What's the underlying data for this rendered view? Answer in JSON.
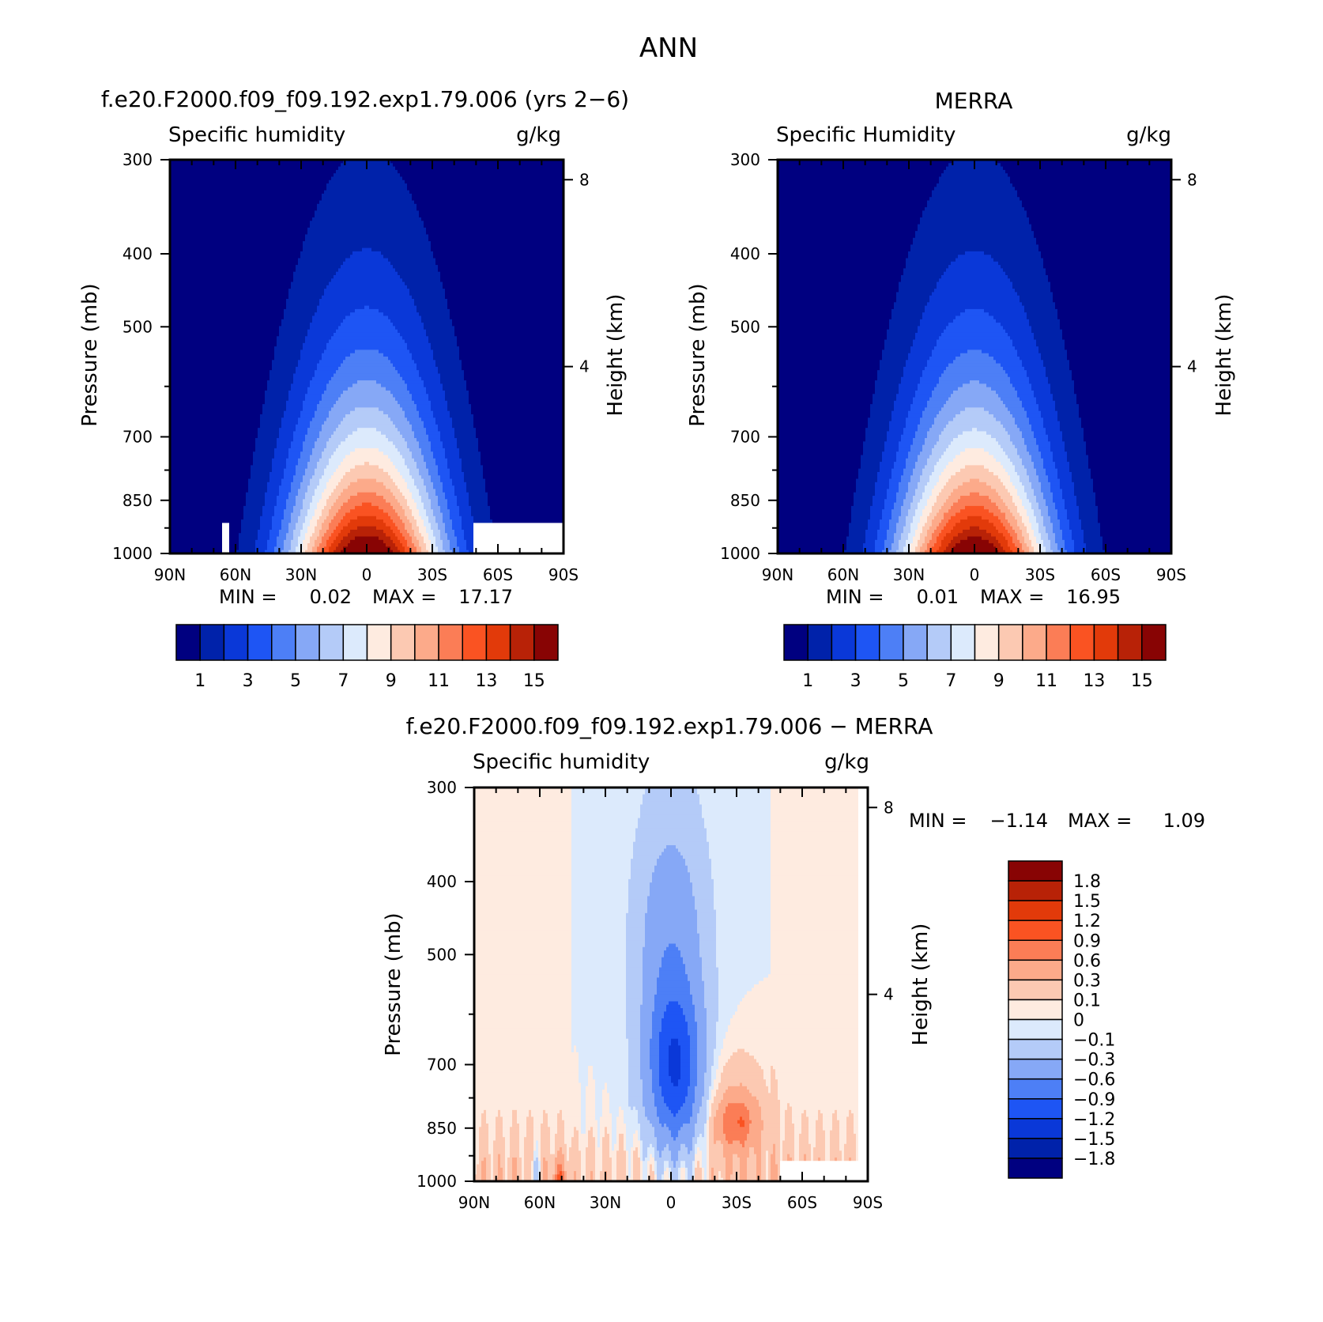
{
  "figure": {
    "title": "ANN",
    "colors": {
      "abs_palette": [
        "#000080",
        "#0022aa",
        "#0a38d8",
        "#1e55f4",
        "#4d7ff6",
        "#86a8f6",
        "#b4cbf8",
        "#dceafc",
        "#feebe0",
        "#fcc9b2",
        "#fcaa8a",
        "#fb7d56",
        "#fa5322",
        "#e23a0a",
        "#b82207",
        "#880404"
      ],
      "diff_palette": [
        "#000080",
        "#0022aa",
        "#0a38d8",
        "#1e55f4",
        "#4d7ff6",
        "#86a8f6",
        "#b4cbf8",
        "#dceafc",
        "#feebe0",
        "#fcc9b2",
        "#fcaa8a",
        "#fb7d56",
        "#fa5322",
        "#e23a0a",
        "#b82207",
        "#880404"
      ]
    }
  },
  "chart_data": [
    {
      "type": "heatmap",
      "title": "f.e20.F2000.f09_f09.192.exp1.79.006 (yrs 2−6)",
      "subtitle": "Specific humidity",
      "units": "g/kg",
      "ylabel": "Pressure (mb)",
      "ylabel_right": "Height (km)",
      "x_ticks": [
        "90N",
        "60N",
        "30N",
        "0",
        "30S",
        "60S",
        "90S"
      ],
      "x_values": [
        90,
        60,
        30,
        0,
        -30,
        -60,
        -90
      ],
      "y_ticks": [
        300,
        400,
        500,
        700,
        850,
        1000
      ],
      "y_right_ticks": [
        8,
        4
      ],
      "ylim": [
        1000,
        300
      ],
      "log_pressure": true,
      "min_label": "MIN =",
      "min_value": "0.02",
      "max_label": "MAX =",
      "max_value": "17.17",
      "min": 0.02,
      "max": 17.17,
      "peak": 17,
      "levels": [
        1,
        2,
        3,
        4,
        5,
        6,
        7,
        8,
        9,
        10,
        11,
        12,
        13,
        14,
        15
      ],
      "colorbar_labels": [
        "1",
        "3",
        "5",
        "7",
        "9",
        "11",
        "13",
        "15"
      ],
      "colorbar_orientation": "horizontal"
    },
    {
      "type": "heatmap",
      "title": "MERRA",
      "subtitle": "Specific Humidity",
      "units": "g/kg",
      "ylabel": "Pressure (mb)",
      "ylabel_right": "Height (km)",
      "x_ticks": [
        "90N",
        "60N",
        "30N",
        "0",
        "30S",
        "60S",
        "90S"
      ],
      "x_values": [
        90,
        60,
        30,
        0,
        -30,
        -60,
        -90
      ],
      "y_ticks": [
        300,
        400,
        500,
        700,
        850,
        1000
      ],
      "y_right_ticks": [
        8,
        4
      ],
      "ylim": [
        1000,
        300
      ],
      "log_pressure": true,
      "min_label": "MIN =",
      "min_value": "0.01",
      "max_label": "MAX =",
      "max_value": "16.95",
      "min": 0.01,
      "max": 16.95,
      "peak": 16.8,
      "levels": [
        1,
        2,
        3,
        4,
        5,
        6,
        7,
        8,
        9,
        10,
        11,
        12,
        13,
        14,
        15
      ],
      "colorbar_labels": [
        "1",
        "3",
        "5",
        "7",
        "9",
        "11",
        "13",
        "15"
      ],
      "colorbar_orientation": "horizontal"
    },
    {
      "type": "heatmap",
      "title": "f.e20.F2000.f09_f09.192.exp1.79.006 − MERRA",
      "subtitle": "Specific humidity",
      "units": "g/kg",
      "ylabel": "Pressure (mb)",
      "ylabel_right": "Height (km)",
      "x_ticks": [
        "90N",
        "60N",
        "30N",
        "0",
        "30S",
        "60S",
        "90S"
      ],
      "x_values": [
        90,
        60,
        30,
        0,
        -30,
        -60,
        -90
      ],
      "y_ticks": [
        300,
        400,
        500,
        700,
        850,
        1000
      ],
      "y_right_ticks": [
        8,
        4
      ],
      "ylim": [
        1000,
        300
      ],
      "log_pressure": true,
      "min_label": "MIN =",
      "min_value": "−1.14",
      "max_label": "MAX =",
      "max_value": "1.09",
      "min": -1.14,
      "max": 1.09,
      "levels": [
        -1.8,
        -1.5,
        -1.2,
        -0.9,
        -0.6,
        -0.3,
        -0.1,
        0,
        0.1,
        0.3,
        0.6,
        0.9,
        1.2,
        1.5,
        1.8
      ],
      "colorbar_labels": [
        "1.8",
        "1.5",
        "1.2",
        "0.9",
        "0.6",
        "0.3",
        "0.1",
        "0",
        "−0.1",
        "−0.3",
        "−0.6",
        "−0.9",
        "−1.2",
        "−1.5",
        "−1.8"
      ],
      "colorbar_orientation": "vertical"
    }
  ]
}
